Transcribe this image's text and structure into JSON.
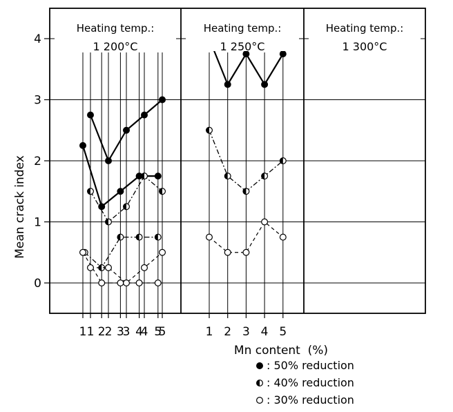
{
  "chart_data": {
    "type": "line",
    "xlabel": "Mn content  (%)",
    "ylabel": "Mean crack index",
    "x": [
      1,
      2,
      3,
      4,
      5
    ],
    "x_tick_labels": [
      "1",
      "2",
      "3",
      "4",
      "5"
    ],
    "y_ticks": [
      0,
      1,
      2,
      3,
      4
    ],
    "ylim": [
      -0.5,
      4.4
    ],
    "grid": true,
    "legend_position": "bottom-right",
    "panels": [
      {
        "title_line1": "Heating temp.:",
        "title_line2": "1 200°C",
        "series": [
          {
            "key": "r50",
            "values": [
              2.25,
              1.25,
              1.5,
              1.75,
              1.75
            ]
          },
          {
            "key": "r40",
            "values": [
              0.5,
              0.25,
              0.75,
              0.75,
              0.75
            ],
            "first_x": 1.1
          },
          {
            "key": "r30",
            "values": [
              0.5,
              0.0,
              0.0,
              0.0,
              0.0
            ]
          }
        ]
      },
      {
        "title_line1": "Heating temp.:",
        "title_line2": "1 250°C",
        "series": [
          {
            "key": "r50",
            "values": [
              2.75,
              2.0,
              2.5,
              2.75,
              3.0
            ]
          },
          {
            "key": "r40",
            "values": [
              1.5,
              1.0,
              1.25,
              1.75,
              1.5
            ]
          },
          {
            "key": "r30",
            "values": [
              0.25,
              0.25,
              0.0,
              0.25,
              0.5
            ]
          }
        ]
      },
      {
        "title_line1": "Heating temp.:",
        "title_line2": "1 300°C",
        "series": [
          {
            "key": "r50",
            "values": [
              4.0,
              3.25,
              3.75,
              3.25,
              3.75
            ]
          },
          {
            "key": "r40",
            "values": [
              2.5,
              1.75,
              1.5,
              1.75,
              2.0
            ]
          },
          {
            "key": "r30",
            "values": [
              0.75,
              0.5,
              0.5,
              1.0,
              0.75
            ]
          }
        ]
      }
    ],
    "legend": [
      {
        "key": "r50",
        "marker": "filled",
        "line": "solid",
        "label": ": 50% reduction"
      },
      {
        "key": "r40",
        "marker": "half",
        "line": "dash-dot",
        "label": ": 40% reduction"
      },
      {
        "key": "r30",
        "marker": "open",
        "line": "dashed",
        "label": ": 30% reduction"
      }
    ]
  }
}
